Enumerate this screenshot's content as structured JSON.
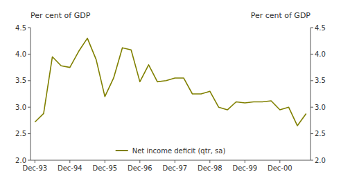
{
  "chart_data": {
    "type": "line",
    "ylabel": "Per cent of GDP",
    "y2label": "Per cent of GDP",
    "categories": [
      "Dec-93",
      null,
      null,
      null,
      "Dec-94",
      null,
      null,
      null,
      "Dec-95",
      null,
      null,
      null,
      "Dec-96",
      null,
      null,
      null,
      "Dec-97",
      null,
      null,
      null,
      "Dec-98",
      null,
      null,
      null,
      "Dec-99",
      null,
      null,
      null,
      "Dec-00",
      null,
      null,
      null
    ],
    "series": [
      {
        "name": "Net income deficit (qtr, sa)",
        "color": "#808000",
        "values": [
          2.72,
          2.88,
          3.95,
          3.78,
          3.75,
          4.05,
          4.3,
          3.9,
          3.2,
          3.55,
          4.12,
          4.08,
          3.48,
          3.8,
          3.48,
          3.5,
          3.55,
          3.55,
          3.25,
          3.25,
          3.3,
          3.0,
          2.95,
          3.1,
          3.08,
          3.1,
          3.1,
          3.12,
          2.95,
          3.0,
          2.65,
          2.88
        ]
      }
    ],
    "xlim": [
      -0.5,
      31.5
    ],
    "ylim": [
      2.0,
      4.5
    ],
    "yticks": [
      {
        "value": 2.0,
        "label": "2.0"
      },
      {
        "value": 2.5,
        "label": "2.5"
      },
      {
        "value": 3.0,
        "label": "3.0"
      },
      {
        "value": 3.5,
        "label": "3.5"
      },
      {
        "value": 4.0,
        "label": "4.0"
      },
      {
        "value": 4.5,
        "label": "4.5"
      }
    ],
    "y2lim": [
      2.0,
      4.5
    ],
    "y2ticks": [
      {
        "value": 2.0,
        "label": "2.0"
      },
      {
        "value": 2.5,
        "label": "2.5"
      },
      {
        "value": 3.0,
        "label": "3.0"
      },
      {
        "value": 3.5,
        "label": "3.5"
      },
      {
        "value": 4.0,
        "label": "4.0"
      },
      {
        "value": 4.5,
        "label": "4.5"
      }
    ],
    "grid": false,
    "legend": "bottom"
  }
}
